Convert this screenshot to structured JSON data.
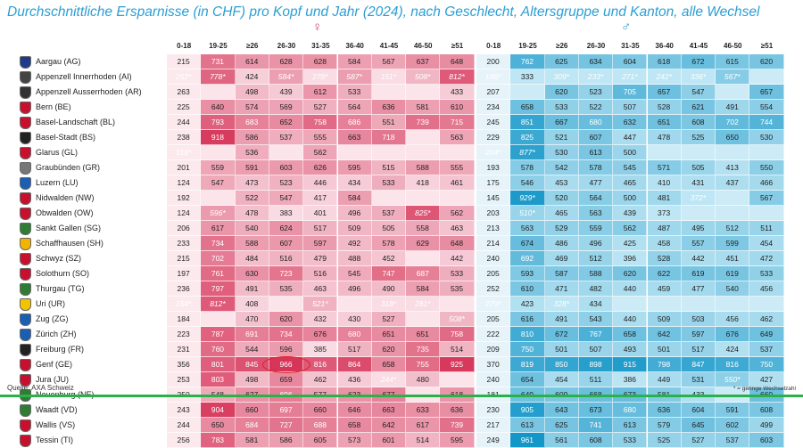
{
  "chart_data": {
    "type": "table",
    "title": "Durchschnittliche Ersparnisse (in CHF) pro Kopf und Jahr (2024), nach Geschlecht, Altersgruppe und Kanton, alle Wechsel",
    "female_symbol": "♀",
    "male_symbol": "♂",
    "age_groups": [
      "0-18",
      "19-25",
      "≥26",
      "26-30",
      "31-35",
      "36-40",
      "41-45",
      "46-50",
      "≥51"
    ],
    "low_change_marker": "*",
    "rows": [
      {
        "canton": "Aargau (AG)",
        "female": [
          "215",
          "731",
          "614",
          "628",
          "628",
          "584",
          "567",
          "637",
          "648"
        ],
        "male": [
          "200",
          "762",
          "625",
          "634",
          "604",
          "618",
          "672",
          "615",
          "620"
        ]
      },
      {
        "canton": "Appenzell Innerrhoden (AI)",
        "female": [
          "257*",
          "778*",
          "424",
          "584*",
          "278*",
          "587*",
          "151*",
          "508*",
          "812*"
        ],
        "male": [
          "188*",
          "333",
          "309*",
          "233*",
          "271*",
          "242*",
          "336*",
          "567*",
          ""
        ]
      },
      {
        "canton": "Appenzell Ausserrhoden (AR)",
        "female": [
          "263",
          "",
          "498",
          "439",
          "612",
          "533",
          "",
          "",
          "433"
        ],
        "male": [
          "207",
          "",
          "620",
          "523",
          "705",
          "657",
          "547",
          "",
          "657"
        ]
      },
      {
        "canton": "Bern (BE)",
        "female": [
          "225",
          "640",
          "574",
          "569",
          "527",
          "564",
          "636",
          "581",
          "610"
        ],
        "male": [
          "234",
          "658",
          "533",
          "522",
          "507",
          "528",
          "621",
          "491",
          "554"
        ]
      },
      {
        "canton": "Basel-Landschaft (BL)",
        "female": [
          "244",
          "793",
          "683",
          "652",
          "758",
          "686",
          "551",
          "739",
          "715"
        ],
        "male": [
          "245",
          "851",
          "667",
          "680",
          "632",
          "651",
          "608",
          "702",
          "744"
        ]
      },
      {
        "canton": "Basel-Stadt (BS)",
        "female": [
          "238",
          "918",
          "586",
          "537",
          "555",
          "663",
          "718",
          "",
          "563"
        ],
        "male": [
          "229",
          "825",
          "521",
          "607",
          "447",
          "478",
          "525",
          "650",
          "530"
        ]
      },
      {
        "canton": "Glarus (GL)",
        "female": [
          "318*",
          "",
          "536",
          "",
          "562",
          "",
          "",
          "",
          ""
        ],
        "male": [
          "204*",
          "877*",
          "530",
          "613",
          "500",
          "",
          "",
          "",
          ""
        ]
      },
      {
        "canton": "Graubünden (GR)",
        "female": [
          "201",
          "559",
          "591",
          "603",
          "626",
          "595",
          "515",
          "588",
          "555"
        ],
        "male": [
          "193",
          "578",
          "542",
          "578",
          "545",
          "571",
          "505",
          "413",
          "550"
        ]
      },
      {
        "canton": "Luzern (LU)",
        "female": [
          "124",
          "547",
          "473",
          "523",
          "446",
          "434",
          "533",
          "418",
          "461"
        ],
        "male": [
          "175",
          "546",
          "453",
          "477",
          "465",
          "410",
          "431",
          "437",
          "466"
        ]
      },
      {
        "canton": "Nidwalden (NW)",
        "female": [
          "192",
          "",
          "522",
          "547",
          "417",
          "584",
          "",
          "",
          ""
        ],
        "male": [
          "145",
          "929*",
          "520",
          "564",
          "500",
          "481",
          "372*",
          "",
          "567"
        ]
      },
      {
        "canton": "Obwalden (OW)",
        "female": [
          "124",
          "596*",
          "478",
          "383",
          "401",
          "496",
          "537",
          "825*",
          "562"
        ],
        "male": [
          "203",
          "510*",
          "465",
          "563",
          "439",
          "373",
          "",
          "",
          ""
        ]
      },
      {
        "canton": "Sankt Gallen (SG)",
        "female": [
          "206",
          "617",
          "540",
          "624",
          "517",
          "509",
          "505",
          "558",
          "463"
        ],
        "male": [
          "213",
          "563",
          "529",
          "559",
          "562",
          "487",
          "495",
          "512",
          "511"
        ]
      },
      {
        "canton": "Schaffhausen (SH)",
        "female": [
          "233",
          "734",
          "588",
          "607",
          "597",
          "492",
          "578",
          "629",
          "648"
        ],
        "male": [
          "214",
          "674",
          "486",
          "496",
          "425",
          "458",
          "557",
          "599",
          "454"
        ]
      },
      {
        "canton": "Schwyz (SZ)",
        "female": [
          "215",
          "702",
          "484",
          "516",
          "479",
          "488",
          "452",
          "",
          "442"
        ],
        "male": [
          "240",
          "692",
          "469",
          "512",
          "396",
          "528",
          "442",
          "451",
          "472"
        ]
      },
      {
        "canton": "Solothurn (SO)",
        "female": [
          "197",
          "761",
          "630",
          "723",
          "516",
          "545",
          "747",
          "687",
          "533"
        ],
        "male": [
          "205",
          "593",
          "587",
          "588",
          "620",
          "622",
          "619",
          "619",
          "533"
        ]
      },
      {
        "canton": "Thurgau (TG)",
        "female": [
          "236",
          "797",
          "491",
          "535",
          "463",
          "496",
          "490",
          "584",
          "535"
        ],
        "male": [
          "252",
          "610",
          "471",
          "482",
          "440",
          "459",
          "477",
          "540",
          "456"
        ]
      },
      {
        "canton": "Uri (UR)",
        "female": [
          "154*",
          "812*",
          "408",
          "",
          "521*",
          "",
          "318*",
          "281*",
          ""
        ],
        "male": [
          "279*",
          "423",
          "328*",
          "434",
          "",
          "",
          "",
          "",
          ""
        ]
      },
      {
        "canton": "Zug (ZG)",
        "female": [
          "184",
          "",
          "470",
          "620",
          "432",
          "430",
          "527",
          "",
          "508*"
        ],
        "male": [
          "205",
          "616",
          "491",
          "543",
          "440",
          "509",
          "503",
          "456",
          "462"
        ]
      },
      {
        "canton": "Zürich (ZH)",
        "female": [
          "223",
          "787",
          "691",
          "734",
          "676",
          "680",
          "651",
          "651",
          "758"
        ],
        "male": [
          "222",
          "810",
          "672",
          "767",
          "658",
          "642",
          "597",
          "676",
          "649"
        ]
      },
      {
        "canton": "Freiburg (FR)",
        "female": [
          "231",
          "760",
          "544",
          "596",
          "385",
          "517",
          "620",
          "735",
          "514"
        ],
        "male": [
          "209",
          "750",
          "501",
          "507",
          "493",
          "501",
          "517",
          "424",
          "537"
        ]
      },
      {
        "canton": "Genf (GE)",
        "female": [
          "356",
          "801",
          "845",
          "966",
          "816",
          "864",
          "658",
          "755",
          "925"
        ],
        "male": [
          "370",
          "819",
          "850",
          "898",
          "915",
          "798",
          "847",
          "816",
          "750"
        ]
      },
      {
        "canton": "Jura (JU)",
        "female": [
          "253",
          "803",
          "498",
          "659",
          "462",
          "436",
          "244*",
          "480",
          ""
        ],
        "male": [
          "240",
          "654",
          "454",
          "511",
          "386",
          "449",
          "531",
          "550*",
          "427"
        ]
      },
      {
        "canton": "Neuenburg (NE)",
        "female": [
          "250",
          "548",
          "627",
          "696",
          "577",
          "623",
          "677",
          "",
          "618"
        ],
        "male": [
          "181",
          "649",
          "609",
          "668",
          "673",
          "581",
          "433",
          "",
          "660"
        ]
      },
      {
        "canton": "Waadt (VD)",
        "female": [
          "243",
          "904",
          "660",
          "697",
          "660",
          "646",
          "663",
          "633",
          "636"
        ],
        "male": [
          "230",
          "905",
          "643",
          "673",
          "680",
          "636",
          "604",
          "591",
          "608"
        ]
      },
      {
        "canton": "Wallis (VS)",
        "female": [
          "244",
          "650",
          "684",
          "727",
          "688",
          "658",
          "642",
          "617",
          "739"
        ],
        "male": [
          "217",
          "613",
          "625",
          "741",
          "613",
          "579",
          "645",
          "602",
          "499"
        ]
      },
      {
        "canton": "Tessin (TI)",
        "female": [
          "256",
          "783",
          "581",
          "586",
          "605",
          "573",
          "601",
          "514",
          "595"
        ],
        "male": [
          "249",
          "961",
          "561",
          "608",
          "533",
          "525",
          "527",
          "537",
          "603"
        ]
      }
    ],
    "highlighted_cell": {
      "canton": "Genf (GE)",
      "sex": "female",
      "age_group": "26-30",
      "value": "966"
    }
  },
  "source": "Quelle: AXA Schweiz",
  "footnote": "* = geringe Wechselzahl",
  "colors": {
    "female_accent": "#c9305a",
    "male_accent": "#1797c9",
    "title": "#2b9fd4",
    "highlight_ring": "#e02020",
    "bottom_line": "#2ab24a"
  }
}
